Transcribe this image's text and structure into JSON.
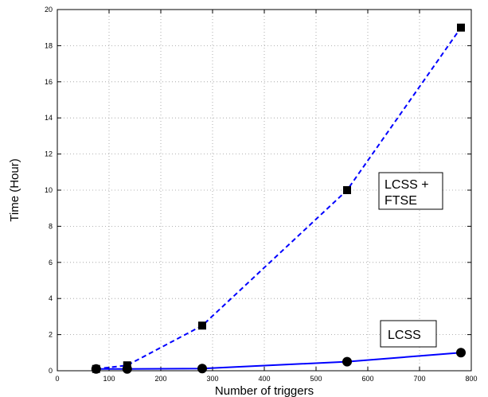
{
  "chart_data": {
    "type": "line",
    "title": "",
    "xlabel": "Number of triggers",
    "ylabel": "Time (Hour)",
    "xlim": [
      0,
      800
    ],
    "ylim": [
      0,
      20
    ],
    "x_ticks": [
      0,
      100,
      200,
      300,
      400,
      500,
      600,
      700,
      800
    ],
    "y_ticks": [
      0,
      2,
      4,
      6,
      8,
      10,
      12,
      14,
      16,
      18,
      20
    ],
    "grid": true,
    "series": [
      {
        "name": "LCSS + FTSE",
        "line_style": "dashed",
        "marker": "square",
        "color": "#0000ff",
        "x": [
          75,
          135,
          280,
          560,
          780
        ],
        "y": [
          0.1,
          0.3,
          2.5,
          10.0,
          19.0
        ]
      },
      {
        "name": "LCSS",
        "line_style": "solid",
        "marker": "circle",
        "color": "#0000ff",
        "x": [
          75,
          135,
          280,
          560,
          780
        ],
        "y": [
          0.1,
          0.1,
          0.12,
          0.5,
          1.0
        ]
      }
    ],
    "annotations": [
      {
        "lines": [
          "LCSS +",
          "FTSE"
        ],
        "series": "LCSS + FTSE"
      },
      {
        "lines": [
          "LCSS"
        ],
        "series": "LCSS"
      }
    ]
  }
}
